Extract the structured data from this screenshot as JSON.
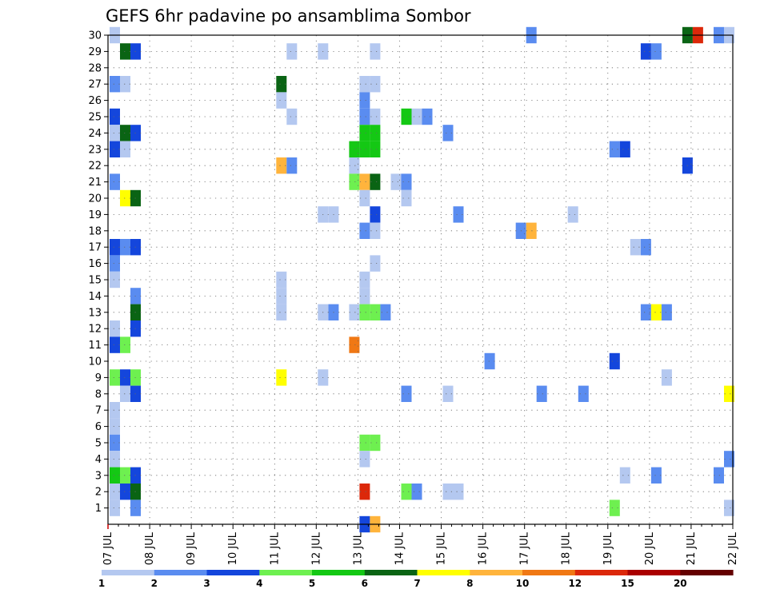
{
  "chart_data": {
    "type": "heatmap",
    "title": "GEFS 6hr padavine po ansamblima Sombor",
    "xlabel": "",
    "ylabel": "",
    "x_start": "2025-07-07T00",
    "x_step_hours": 6,
    "x_tick_labels": [
      "07 JUL",
      "08 JUL",
      "09 JUL",
      "10 JUL",
      "11 JUL",
      "12 JUL",
      "13 JUL",
      "14 JUL",
      "15 JUL",
      "16 JUL",
      "17 JUL",
      "18 JUL",
      "19 JUL",
      "20 JUL",
      "21 JUL",
      "22 JUL"
    ],
    "y_tick_labels": [
      "1",
      "2",
      "3",
      "4",
      "5",
      "6",
      "7",
      "8",
      "9",
      "10",
      "11",
      "12",
      "13",
      "14",
      "15",
      "16",
      "17",
      "18",
      "19",
      "20",
      "21",
      "22",
      "23",
      "24",
      "25",
      "26",
      "27",
      "28",
      "29",
      "30"
    ],
    "grid": true,
    "legend_placement": "bottom",
    "legend": {
      "labels": [
        "1",
        "2",
        "3",
        "4",
        "5",
        "6",
        "7",
        "8",
        "10",
        "12",
        "15",
        "20"
      ],
      "colors": [
        "#b4c8f0",
        "#5a8cf0",
        "#1446dc",
        "#6ef050",
        "#14c814",
        "#0a6414",
        "#ffff00",
        "#ffb43c",
        "#f07814",
        "#dc280a",
        "#aa0000",
        "#640000"
      ]
    },
    "cells": [
      [
        "2025-07-07T00",
        30,
        1
      ],
      [
        "2025-07-07T06",
        29,
        6
      ],
      [
        "2025-07-07T12",
        29,
        3
      ],
      [
        "2025-07-07T00",
        27,
        2
      ],
      [
        "2025-07-07T06",
        27,
        1
      ],
      [
        "2025-07-07T00",
        25,
        3
      ],
      [
        "2025-07-07T00",
        24,
        1
      ],
      [
        "2025-07-07T06",
        24,
        6
      ],
      [
        "2025-07-07T12",
        24,
        3
      ],
      [
        "2025-07-07T00",
        23,
        3
      ],
      [
        "2025-07-07T06",
        23,
        1
      ],
      [
        "2025-07-07T00",
        21,
        2
      ],
      [
        "2025-07-07T06",
        20,
        7
      ],
      [
        "2025-07-07T12",
        20,
        6
      ],
      [
        "2025-07-07T00",
        17,
        3
      ],
      [
        "2025-07-07T06",
        17,
        2
      ],
      [
        "2025-07-07T12",
        17,
        3
      ],
      [
        "2025-07-07T00",
        16,
        2
      ],
      [
        "2025-07-07T00",
        15,
        1
      ],
      [
        "2025-07-07T12",
        14,
        2
      ],
      [
        "2025-07-07T12",
        13,
        6
      ],
      [
        "2025-07-07T12",
        12,
        3
      ],
      [
        "2025-07-07T00",
        12,
        1
      ],
      [
        "2025-07-07T00",
        11,
        3
      ],
      [
        "2025-07-07T06",
        11,
        4
      ],
      [
        "2025-07-07T00",
        9,
        4
      ],
      [
        "2025-07-07T06",
        9,
        3
      ],
      [
        "2025-07-07T12",
        9,
        4
      ],
      [
        "2025-07-07T06",
        8,
        1
      ],
      [
        "2025-07-07T12",
        8,
        3
      ],
      [
        "2025-07-07T00",
        7,
        1
      ],
      [
        "2025-07-07T00",
        6,
        1
      ],
      [
        "2025-07-07T00",
        5,
        2
      ],
      [
        "2025-07-07T00",
        4,
        1
      ],
      [
        "2025-07-07T00",
        3,
        5
      ],
      [
        "2025-07-07T06",
        3,
        4
      ],
      [
        "2025-07-07T12",
        3,
        3
      ],
      [
        "2025-07-07T00",
        2,
        1
      ],
      [
        "2025-07-07T06",
        2,
        3
      ],
      [
        "2025-07-07T12",
        2,
        6
      ],
      [
        "2025-07-07T00",
        1,
        1
      ],
      [
        "2025-07-07T12",
        1,
        2
      ],
      [
        "2025-07-11T00",
        27,
        6
      ],
      [
        "2025-07-11T00",
        26,
        1
      ],
      [
        "2025-07-11T06",
        25,
        1
      ],
      [
        "2025-07-11T00",
        22,
        8
      ],
      [
        "2025-07-11T06",
        22,
        2
      ],
      [
        "2025-07-11T00",
        15,
        1
      ],
      [
        "2025-07-11T00",
        14,
        1
      ],
      [
        "2025-07-11T00",
        13,
        1
      ],
      [
        "2025-07-11T00",
        9,
        7
      ],
      [
        "2025-07-11T06",
        29,
        1
      ],
      [
        "2025-07-12T00",
        29,
        1
      ],
      [
        "2025-07-12T00",
        19,
        1
      ],
      [
        "2025-07-12T06",
        19,
        1
      ],
      [
        "2025-07-12T00",
        13,
        1
      ],
      [
        "2025-07-12T06",
        13,
        2
      ],
      [
        "2025-07-12T00",
        9,
        1
      ],
      [
        "2025-07-12T18",
        23,
        5
      ],
      [
        "2025-07-12T18",
        22,
        1
      ],
      [
        "2025-07-12T18",
        13,
        1
      ],
      [
        "2025-07-12T18",
        11,
        9
      ],
      [
        "2025-07-12T18",
        21,
        4
      ],
      [
        "2025-07-13T00",
        27,
        1
      ],
      [
        "2025-07-13T06",
        27,
        1
      ],
      [
        "2025-07-13T00",
        26,
        2
      ],
      [
        "2025-07-13T00",
        25,
        2
      ],
      [
        "2025-07-13T06",
        25,
        1
      ],
      [
        "2025-07-13T00",
        24,
        5
      ],
      [
        "2025-07-13T06",
        24,
        5
      ],
      [
        "2025-07-13T00",
        23,
        5
      ],
      [
        "2025-07-13T06",
        23,
        5
      ],
      [
        "2025-07-13T00",
        21,
        8
      ],
      [
        "2025-07-13T06",
        21,
        6
      ],
      [
        "2025-07-13T00",
        20,
        1
      ],
      [
        "2025-07-13T06",
        19,
        3
      ],
      [
        "2025-07-13T00",
        18,
        2
      ],
      [
        "2025-07-13T06",
        18,
        1
      ],
      [
        "2025-07-13T06",
        16,
        1
      ],
      [
        "2025-07-13T00",
        15,
        1
      ],
      [
        "2025-07-13T00",
        14,
        1
      ],
      [
        "2025-07-13T00",
        13,
        4
      ],
      [
        "2025-07-13T06",
        13,
        4
      ],
      [
        "2025-07-13T12",
        13,
        2
      ],
      [
        "2025-07-13T06",
        29,
        1
      ],
      [
        "2025-07-13T00",
        5,
        4
      ],
      [
        "2025-07-13T06",
        5,
        4
      ],
      [
        "2025-07-13T00",
        4,
        1
      ],
      [
        "2025-07-13T00",
        2,
        10
      ],
      [
        "2025-07-13T18",
        21,
        1
      ],
      [
        "2025-07-13T00",
        0,
        3
      ],
      [
        "2025-07-13T06",
        0,
        8
      ],
      [
        "2025-07-14T00",
        21,
        2
      ],
      [
        "2025-07-14T00",
        20,
        1
      ],
      [
        "2025-07-14T00",
        25,
        5
      ],
      [
        "2025-07-14T06",
        25,
        1
      ],
      [
        "2025-07-14T12",
        25,
        2
      ],
      [
        "2025-07-14T00",
        8,
        2
      ],
      [
        "2025-07-14T00",
        2,
        4
      ],
      [
        "2025-07-14T06",
        2,
        2
      ],
      [
        "2025-07-15T00",
        24,
        2
      ],
      [
        "2025-07-15T00",
        8,
        1
      ],
      [
        "2025-07-15T00",
        2,
        1
      ],
      [
        "2025-07-15T06",
        2,
        1
      ],
      [
        "2025-07-15T06",
        19,
        2
      ],
      [
        "2025-07-16T00",
        10,
        2
      ],
      [
        "2025-07-16T18",
        18,
        2
      ],
      [
        "2025-07-17T00",
        18,
        8
      ],
      [
        "2025-07-17T00",
        30,
        2
      ],
      [
        "2025-07-17T06",
        8,
        2
      ],
      [
        "2025-07-18T00",
        19,
        1
      ],
      [
        "2025-07-18T06",
        8,
        2
      ],
      [
        "2025-07-19T00",
        23,
        2
      ],
      [
        "2025-07-19T06",
        23,
        3
      ],
      [
        "2025-07-19T00",
        10,
        3
      ],
      [
        "2025-07-19T00",
        1,
        4
      ],
      [
        "2025-07-19T06",
        3,
        1
      ],
      [
        "2025-07-19T12",
        17,
        1
      ],
      [
        "2025-07-19T18",
        17,
        2
      ],
      [
        "2025-07-19T18",
        29,
        3
      ],
      [
        "2025-07-20T00",
        29,
        2
      ],
      [
        "2025-07-19T18",
        13,
        2
      ],
      [
        "2025-07-20T00",
        13,
        7
      ],
      [
        "2025-07-20T06",
        13,
        2
      ],
      [
        "2025-07-20T00",
        3,
        2
      ],
      [
        "2025-07-20T06",
        9,
        1
      ],
      [
        "2025-07-20T18",
        30,
        6
      ],
      [
        "2025-07-21T00",
        30,
        10
      ],
      [
        "2025-07-20T18",
        22,
        3
      ],
      [
        "2025-07-21T12",
        30,
        2
      ],
      [
        "2025-07-21T18",
        30,
        1
      ],
      [
        "2025-07-21T12",
        3,
        2
      ],
      [
        "2025-07-21T18",
        8,
        7
      ],
      [
        "2025-07-21T18",
        4,
        2
      ],
      [
        "2025-07-21T18",
        1,
        1
      ]
    ]
  }
}
